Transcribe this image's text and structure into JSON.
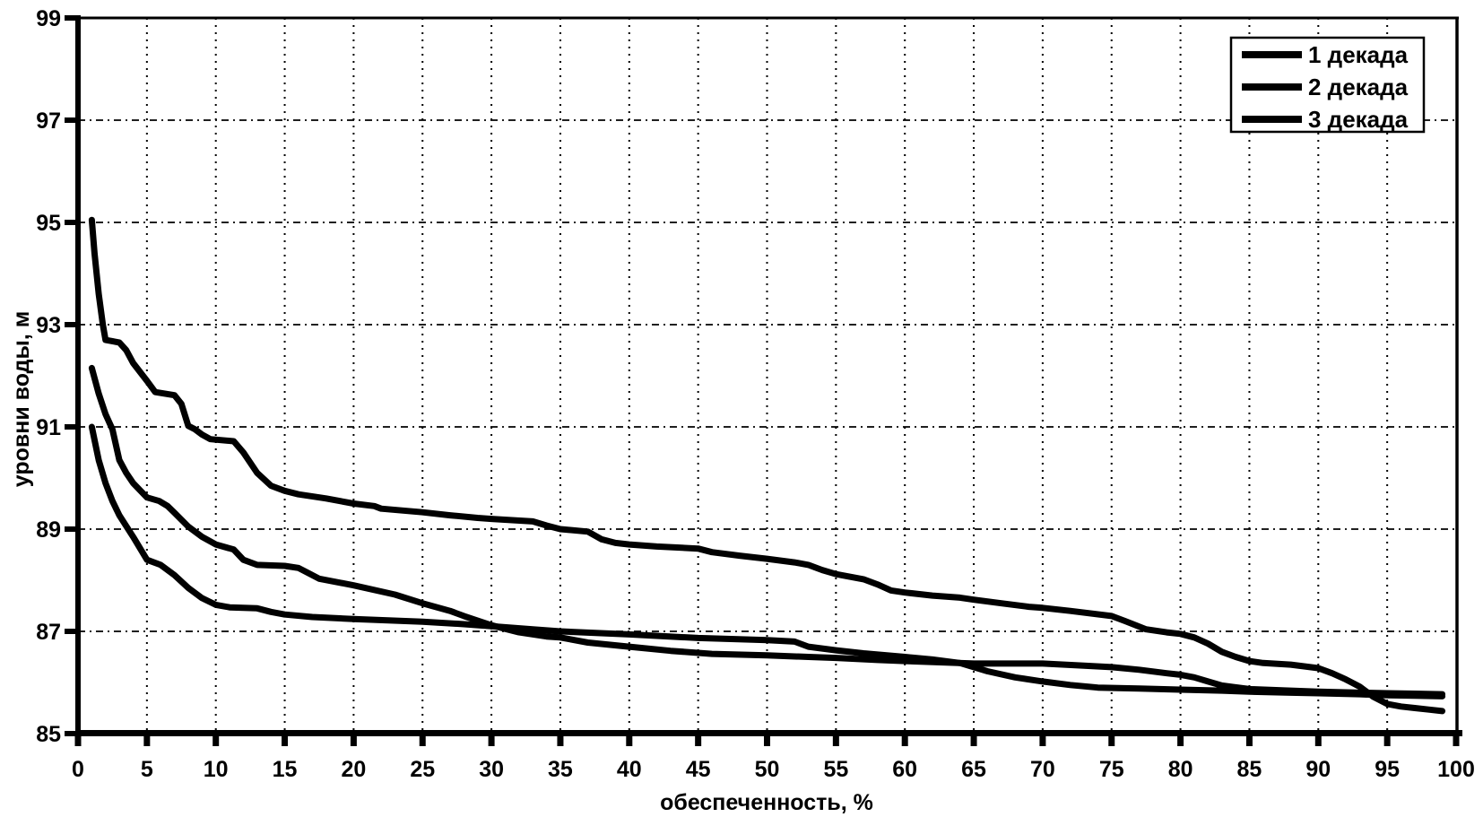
{
  "figure": {
    "background": "#ffffff",
    "ink_color": "#000000",
    "frame": "solid black border on top and right, heavy black axes left and bottom, dotted inner grid"
  },
  "chart_data": {
    "type": "line",
    "title": "",
    "xlabel": "обеспеченность, %",
    "ylabel": "уровни воды, м",
    "xlim": [
      0,
      100
    ],
    "ylim": [
      85,
      99
    ],
    "x_ticks": [
      0,
      5,
      10,
      15,
      20,
      25,
      30,
      35,
      40,
      45,
      50,
      55,
      60,
      65,
      70,
      75,
      80,
      85,
      90,
      95,
      100
    ],
    "y_ticks": [
      85,
      87,
      89,
      91,
      93,
      95,
      97,
      99
    ],
    "grid": "dashed vertical line every 5 %, dashed horizontal line every 2 m",
    "legend_position": "top-right inset box",
    "line_color": "#000000",
    "line_width": 7,
    "series": [
      {
        "name": "1 декада",
        "color": "#000000",
        "points": [
          [
            1,
            95.05
          ],
          [
            1.2,
            94.4
          ],
          [
            1.5,
            93.6
          ],
          [
            1.8,
            93.0
          ],
          [
            2,
            92.7
          ],
          [
            3,
            92.65
          ],
          [
            3.5,
            92.5
          ],
          [
            4,
            92.25
          ],
          [
            5,
            91.9
          ],
          [
            5.6,
            91.68
          ],
          [
            7,
            91.62
          ],
          [
            7.5,
            91.45
          ],
          [
            8,
            91.02
          ],
          [
            8.5,
            90.95
          ],
          [
            9,
            90.85
          ],
          [
            9.6,
            90.76
          ],
          [
            11.3,
            90.72
          ],
          [
            12,
            90.5
          ],
          [
            13,
            90.1
          ],
          [
            14,
            89.85
          ],
          [
            15,
            89.75
          ],
          [
            16,
            89.68
          ],
          [
            18,
            89.6
          ],
          [
            20,
            89.5
          ],
          [
            21.5,
            89.45
          ],
          [
            22,
            89.4
          ],
          [
            25,
            89.33
          ],
          [
            27,
            89.27
          ],
          [
            29,
            89.22
          ],
          [
            30,
            89.2
          ],
          [
            33,
            89.15
          ],
          [
            34,
            89.07
          ],
          [
            35,
            89.0
          ],
          [
            37,
            88.95
          ],
          [
            38,
            88.8
          ],
          [
            39,
            88.73
          ],
          [
            40,
            88.7
          ],
          [
            42,
            88.66
          ],
          [
            45,
            88.62
          ],
          [
            46,
            88.55
          ],
          [
            48,
            88.48
          ],
          [
            50,
            88.42
          ],
          [
            52,
            88.35
          ],
          [
            53,
            88.3
          ],
          [
            54,
            88.2
          ],
          [
            55,
            88.12
          ],
          [
            57,
            88.02
          ],
          [
            58,
            87.92
          ],
          [
            59,
            87.8
          ],
          [
            60,
            87.76
          ],
          [
            62,
            87.7
          ],
          [
            64,
            87.66
          ],
          [
            65,
            87.62
          ],
          [
            67,
            87.55
          ],
          [
            69,
            87.48
          ],
          [
            70,
            87.46
          ],
          [
            72,
            87.4
          ],
          [
            75,
            87.3
          ],
          [
            76,
            87.2
          ],
          [
            77.5,
            87.04
          ],
          [
            79,
            86.98
          ],
          [
            80,
            86.95
          ],
          [
            81,
            86.88
          ],
          [
            82,
            86.76
          ],
          [
            83,
            86.6
          ],
          [
            84,
            86.5
          ],
          [
            85,
            86.42
          ],
          [
            86,
            86.38
          ],
          [
            88,
            86.35
          ],
          [
            90,
            86.28
          ],
          [
            91,
            86.18
          ],
          [
            92,
            86.06
          ],
          [
            93,
            85.92
          ],
          [
            94,
            85.72
          ],
          [
            95,
            85.58
          ],
          [
            96,
            85.53
          ],
          [
            97,
            85.5
          ],
          [
            98,
            85.47
          ],
          [
            99,
            85.44
          ]
        ]
      },
      {
        "name": "2 декада",
        "color": "#000000",
        "points": [
          [
            1,
            92.15
          ],
          [
            1.5,
            91.65
          ],
          [
            2,
            91.25
          ],
          [
            2.5,
            90.95
          ],
          [
            3,
            90.35
          ],
          [
            3.5,
            90.1
          ],
          [
            4,
            89.9
          ],
          [
            5,
            89.62
          ],
          [
            5.9,
            89.55
          ],
          [
            6.5,
            89.45
          ],
          [
            7,
            89.32
          ],
          [
            8,
            89.05
          ],
          [
            9,
            88.85
          ],
          [
            10,
            88.7
          ],
          [
            11.3,
            88.6
          ],
          [
            12,
            88.4
          ],
          [
            13,
            88.3
          ],
          [
            15,
            88.28
          ],
          [
            16,
            88.24
          ],
          [
            17.5,
            88.03
          ],
          [
            20,
            87.9
          ],
          [
            23,
            87.72
          ],
          [
            25,
            87.55
          ],
          [
            27,
            87.4
          ],
          [
            28,
            87.3
          ],
          [
            30,
            87.12
          ],
          [
            31,
            87.05
          ],
          [
            32,
            86.98
          ],
          [
            34,
            86.9
          ],
          [
            35,
            86.88
          ],
          [
            37,
            86.78
          ],
          [
            40,
            86.7
          ],
          [
            43,
            86.62
          ],
          [
            46,
            86.56
          ],
          [
            50,
            86.53
          ],
          [
            53,
            86.5
          ],
          [
            55,
            86.48
          ],
          [
            58,
            86.44
          ],
          [
            60,
            86.42
          ],
          [
            63,
            86.39
          ],
          [
            65,
            86.37
          ],
          [
            70,
            86.37
          ],
          [
            73,
            86.33
          ],
          [
            75,
            86.3
          ],
          [
            77,
            86.25
          ],
          [
            79,
            86.18
          ],
          [
            80,
            86.15
          ],
          [
            81,
            86.1
          ],
          [
            82,
            86.02
          ],
          [
            83,
            85.94
          ],
          [
            85,
            85.87
          ],
          [
            88,
            85.84
          ],
          [
            90,
            85.82
          ],
          [
            93,
            85.8
          ],
          [
            95,
            85.79
          ],
          [
            97,
            85.78
          ],
          [
            99,
            85.77
          ]
        ]
      },
      {
        "name": "3 декада",
        "color": "#000000",
        "points": [
          [
            1,
            91.0
          ],
          [
            1.5,
            90.35
          ],
          [
            2,
            89.9
          ],
          [
            2.5,
            89.55
          ],
          [
            3,
            89.27
          ],
          [
            4,
            88.85
          ],
          [
            5,
            88.4
          ],
          [
            6,
            88.3
          ],
          [
            7,
            88.1
          ],
          [
            8,
            87.85
          ],
          [
            9,
            87.65
          ],
          [
            10,
            87.52
          ],
          [
            11,
            87.47
          ],
          [
            13,
            87.45
          ],
          [
            14,
            87.38
          ],
          [
            15,
            87.33
          ],
          [
            17,
            87.28
          ],
          [
            20,
            87.24
          ],
          [
            25,
            87.19
          ],
          [
            28,
            87.14
          ],
          [
            30,
            87.1
          ],
          [
            33,
            87.04
          ],
          [
            35,
            87.0
          ],
          [
            40,
            86.94
          ],
          [
            45,
            86.87
          ],
          [
            50,
            86.83
          ],
          [
            52,
            86.8
          ],
          [
            53,
            86.7
          ],
          [
            55,
            86.63
          ],
          [
            57,
            86.57
          ],
          [
            60,
            86.5
          ],
          [
            62,
            86.45
          ],
          [
            64,
            86.38
          ],
          [
            65,
            86.3
          ],
          [
            66,
            86.22
          ],
          [
            68,
            86.1
          ],
          [
            70,
            86.02
          ],
          [
            72,
            85.95
          ],
          [
            74,
            85.9
          ],
          [
            77,
            85.88
          ],
          [
            80,
            85.86
          ],
          [
            83,
            85.84
          ],
          [
            85,
            85.82
          ],
          [
            88,
            85.8
          ],
          [
            90,
            85.79
          ],
          [
            93,
            85.77
          ],
          [
            95,
            85.75
          ],
          [
            97,
            85.74
          ],
          [
            99,
            85.73
          ]
        ]
      }
    ]
  }
}
